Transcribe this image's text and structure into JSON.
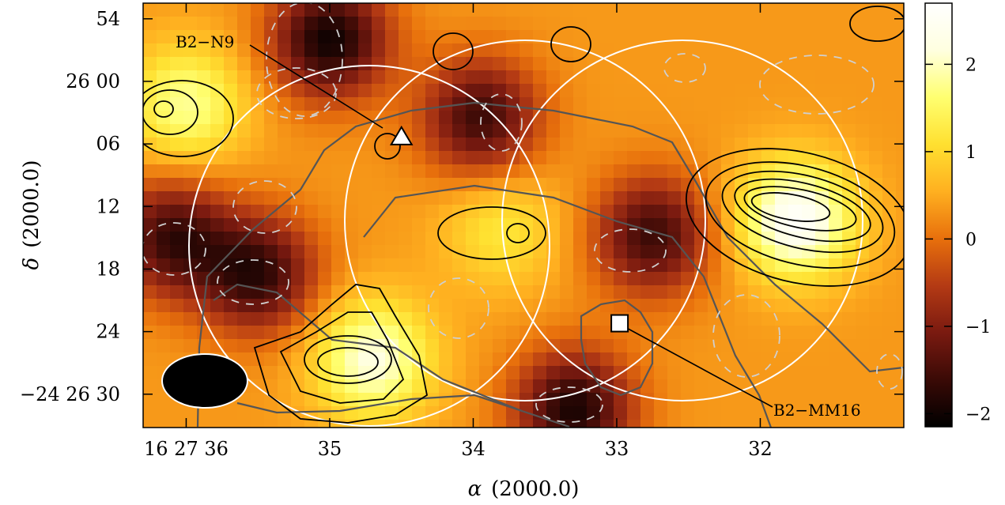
{
  "chart_data": {
    "type": "heatmap",
    "x_axis": {
      "label_greek": "α",
      "label_rest": "(2000.0)",
      "tick_labels": [
        "16 27 36",
        "35",
        "34",
        "33",
        "32"
      ],
      "tick_values_s": [
        36,
        35,
        34,
        33,
        32
      ],
      "range_s": [
        36.3,
        31.0
      ]
    },
    "y_axis": {
      "label_greek": "δ",
      "label_rest": "(2000.0)",
      "tick_labels": [
        "54",
        "26 00",
        "06",
        "12",
        "18",
        "24",
        "−24 26 30"
      ],
      "tick_values_arcsec": [
        54,
        60,
        66,
        72,
        78,
        84,
        90
      ],
      "range_arcsec": [
        52.5,
        93.2
      ]
    },
    "colorbar": {
      "tick_labels": [
        "2",
        "1",
        "0",
        "−1",
        "−2"
      ],
      "tick_values": [
        2,
        1,
        0,
        -1,
        -2
      ],
      "range": [
        -2.15,
        2.7
      ],
      "colors": [
        "#000000",
        "#3a0a06",
        "#7a1a10",
        "#b43a14",
        "#e8700c",
        "#ffb020",
        "#ffe030",
        "#ffff70",
        "#ffffe0",
        "#ffffff"
      ]
    },
    "sources": [
      {
        "name": "B2−N9",
        "marker": "triangle",
        "ra_s": 34.5,
        "dec_arcsec": 65.3
      },
      {
        "name": "B2−MM16",
        "marker": "square",
        "ra_s": 32.98,
        "dec_arcsec": 83.2
      }
    ],
    "fields_of_view": [
      {
        "ra_s": 34.65,
        "dec_arcsec": 72.8,
        "radius_arcsec": 15.4
      },
      {
        "ra_s": 33.58,
        "dec_arcsec": 72.8,
        "radius_arcsec": 15.4
      },
      {
        "ra_s": 32.5,
        "dec_arcsec": 72.8,
        "radius_arcsec": 15.4
      }
    ],
    "beam": {
      "ra_s": 35.7,
      "dec_arcsec": 88.1
    },
    "contours": {
      "positive": "solid black",
      "negative": "dashed gray",
      "reference": "solid dark gray"
    },
    "emission_peaks": [
      {
        "ra_s": 31.75,
        "dec_arcsec": 73.3,
        "value": 2.6
      },
      {
        "ra_s": 34.7,
        "dec_arcsec": 86.7,
        "value": 2.2
      },
      {
        "ra_s": 36.0,
        "dec_arcsec": 62.2,
        "value": 1.8
      },
      {
        "ra_s": 33.8,
        "dec_arcsec": 74.2,
        "value": 1.2
      }
    ],
    "absorption_minima": [
      {
        "ra_s": 35.0,
        "dec_arcsec": 56.0,
        "value": -2.0
      },
      {
        "ra_s": 33.3,
        "dec_arcsec": 91.5,
        "value": -1.9
      },
      {
        "ra_s": 35.5,
        "dec_arcsec": 78.5,
        "value": -1.7
      },
      {
        "ra_s": 36.1,
        "dec_arcsec": 75.0,
        "value": -1.6
      },
      {
        "ra_s": 33.95,
        "dec_arcsec": 63.5,
        "value": -1.6
      },
      {
        "ra_s": 32.75,
        "dec_arcsec": 74.8,
        "value": -1.6
      }
    ]
  }
}
